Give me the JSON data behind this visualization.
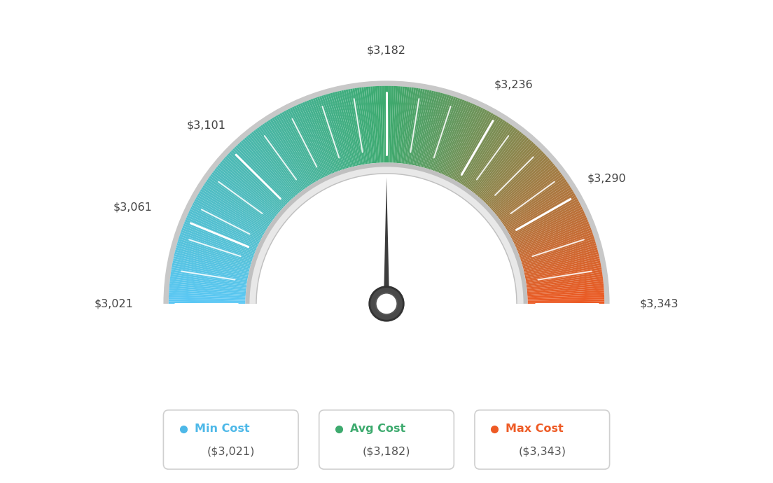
{
  "min_val": 3021,
  "max_val": 3343,
  "avg_val": 3182,
  "tick_labels": [
    "$3,021",
    "$3,061",
    "$3,101",
    "$3,182",
    "$3,236",
    "$3,290",
    "$3,343"
  ],
  "tick_values": [
    3021,
    3061,
    3101,
    3182,
    3236,
    3290,
    3343
  ],
  "legend": [
    {
      "label": "Min Cost",
      "value": "($3,021)",
      "color": "#4db8e8"
    },
    {
      "label": "Avg Cost",
      "value": "($3,182)",
      "color": "#3daa6e"
    },
    {
      "label": "Max Cost",
      "value": "($3,343)",
      "color": "#ee5a24"
    }
  ],
  "background_color": "#ffffff",
  "needle_color": "#3d3d3d",
  "colors_left": [
    "#5bc8f5",
    "#3daa6e"
  ],
  "colors_right": [
    "#3daa6e",
    "#ee5a24"
  ],
  "outer_border_color": "#cccccc",
  "inner_border_color": "#b0b0b0",
  "inner_fill_color": "#e0e0e0"
}
